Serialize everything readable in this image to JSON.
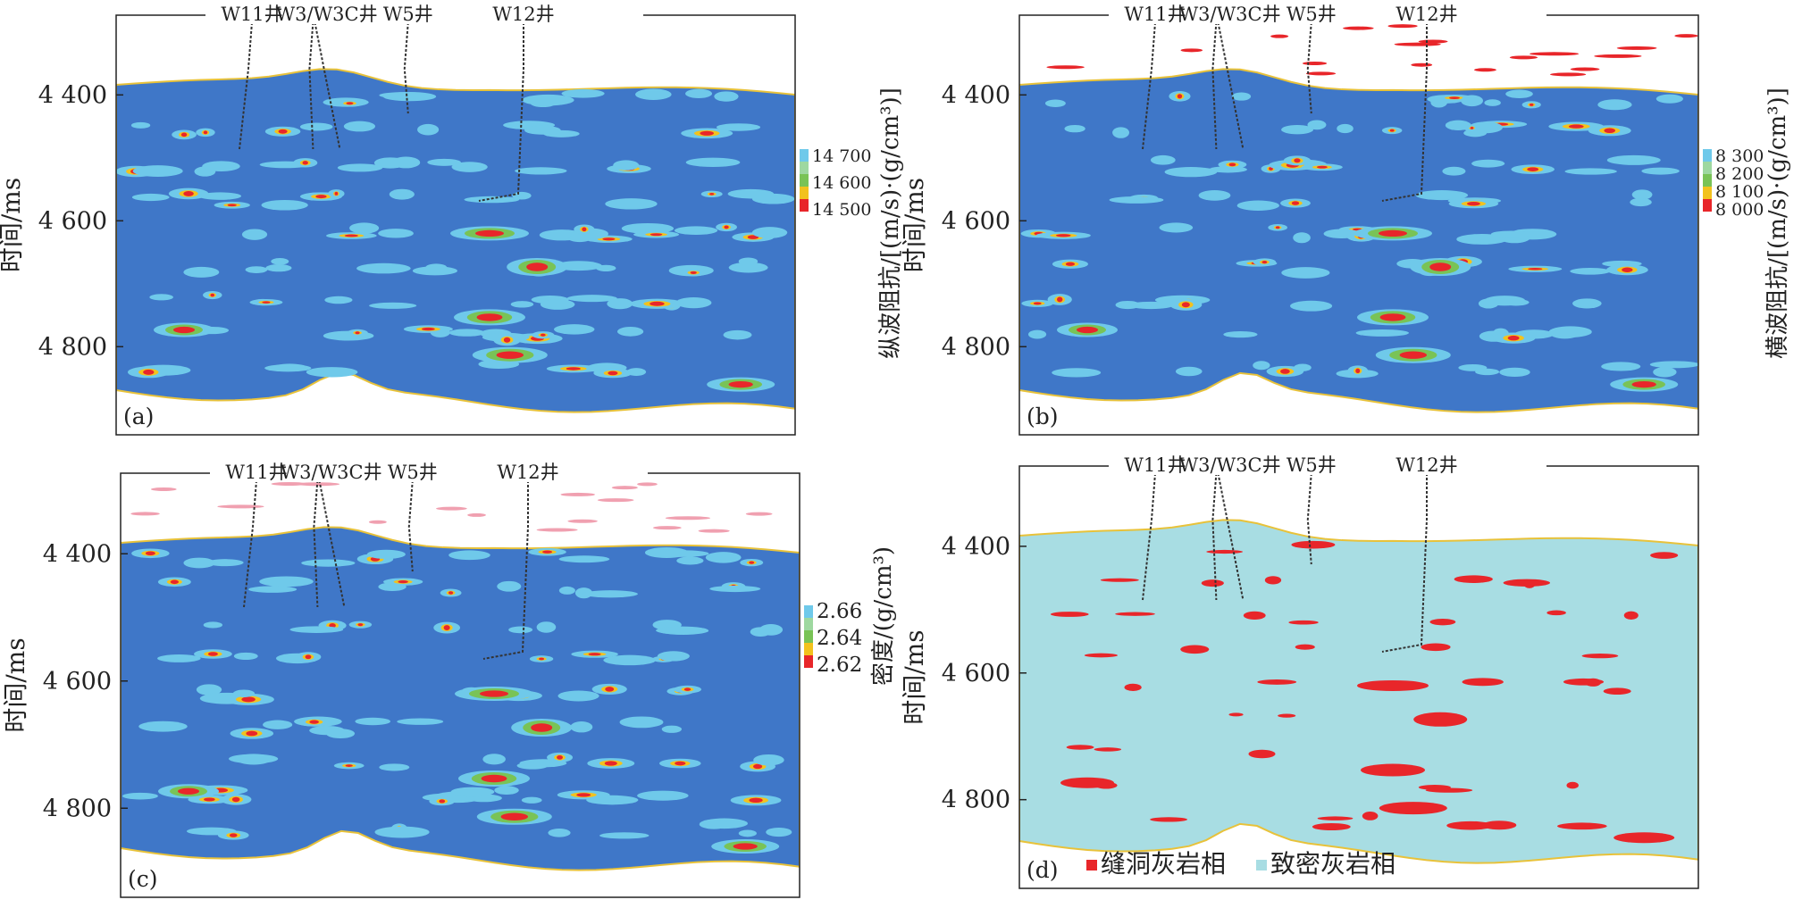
{
  "chart_data": [
    {
      "type": "heatmap",
      "panel_label": "(a)",
      "ylabel": "时间/ms",
      "yticks": [
        "4 400",
        "4 600",
        "4 800"
      ],
      "ytick_values": [
        4400,
        4600,
        4800
      ],
      "colorbar_label": "纵波阻抗/[(m/s)·(g/cm³)]",
      "colorbar_ticks": [
        "14 700",
        "14 600",
        "14 500"
      ],
      "colorbar_values": [
        14700,
        14600,
        14500
      ],
      "wells": [
        "W11井",
        "W3/W3C井",
        "W5井",
        "W12井"
      ],
      "background_color": "#3f77c8"
    },
    {
      "type": "heatmap",
      "panel_label": "(b)",
      "ylabel": "时间/ms",
      "yticks": [
        "4 400",
        "4 600",
        "4 800"
      ],
      "ytick_values": [
        4400,
        4600,
        4800
      ],
      "colorbar_label": "横波阻抗/[(m/s)·(g/cm³)]",
      "colorbar_ticks": [
        "8 300",
        "8 200",
        "8 100",
        "8 000"
      ],
      "colorbar_values": [
        8300,
        8200,
        8100,
        8000
      ],
      "wells": [
        "W11井",
        "W3/W3C井",
        "W5井",
        "W12井"
      ],
      "background_color": "#3f77c8"
    },
    {
      "type": "heatmap",
      "panel_label": "(c)",
      "ylabel": "时间/ms",
      "yticks": [
        "4 400",
        "4 600",
        "4 800"
      ],
      "ytick_values": [
        4400,
        4600,
        4800
      ],
      "colorbar_label": "密度/(g/cm³)",
      "colorbar_ticks": [
        "2.66",
        "2.64",
        "2.62"
      ],
      "colorbar_values": [
        2.66,
        2.64,
        2.62
      ],
      "wells": [
        "W11井",
        "W3/W3C井",
        "W5井",
        "W12井"
      ],
      "background_color": "#3f77c8"
    },
    {
      "type": "heatmap",
      "panel_label": "(d)",
      "ylabel": "时间/ms",
      "yticks": [
        "4 400",
        "4 600",
        "4 800"
      ],
      "ytick_values": [
        4400,
        4600,
        4800
      ],
      "wells": [
        "W11井",
        "W3/W3C井",
        "W5井",
        "W12井"
      ],
      "legend": [
        {
          "label": "缝洞灰岩相",
          "color": "#e8262a"
        },
        {
          "label": "致密灰岩相",
          "color": "#a8dde3"
        }
      ],
      "background_color": "#a8dde3"
    }
  ]
}
